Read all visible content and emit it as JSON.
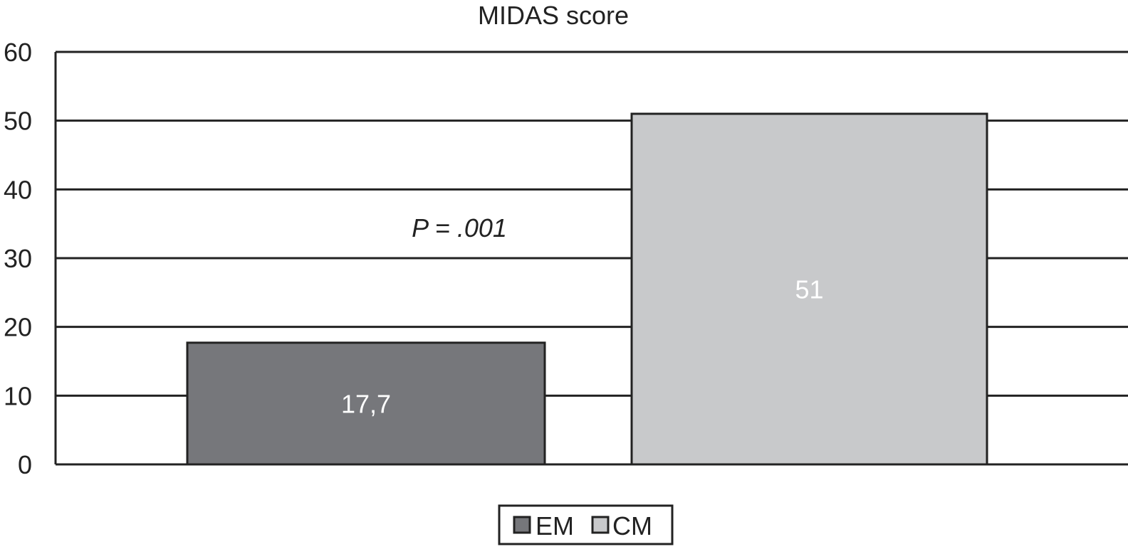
{
  "chart_data": {
    "type": "bar",
    "title": "MIDAS score",
    "categories": [
      "EM",
      "CM"
    ],
    "values": [
      17.7,
      51
    ],
    "data_labels": [
      "17,7",
      "51"
    ],
    "colors": [
      "#76777b",
      "#c8c9cb"
    ],
    "label_color": "#ffffff",
    "ylim": [
      0,
      60
    ],
    "yticks": [
      0,
      10,
      20,
      30,
      40,
      50,
      60
    ],
    "grid": true,
    "annotation": "P = .001",
    "legend": {
      "placement": "bottom",
      "entries": [
        "EM",
        "CM"
      ]
    }
  }
}
